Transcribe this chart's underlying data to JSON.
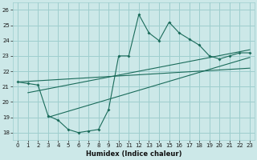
{
  "xlabel": "Humidex (Indice chaleur)",
  "bg_color": "#cce8e8",
  "line_color": "#1a6b5a",
  "xlim": [
    -0.5,
    23.5
  ],
  "ylim": [
    17.5,
    26.5
  ],
  "xticks": [
    0,
    1,
    2,
    3,
    4,
    5,
    6,
    7,
    8,
    9,
    10,
    11,
    12,
    13,
    14,
    15,
    16,
    17,
    18,
    19,
    20,
    21,
    22,
    23
  ],
  "yticks": [
    18,
    19,
    20,
    21,
    22,
    23,
    24,
    25,
    26
  ],
  "grid_color": "#9ecece",
  "data_line": [
    [
      0,
      21.3
    ],
    [
      1,
      21.2
    ],
    [
      2,
      21.1
    ],
    [
      3,
      19.1
    ],
    [
      4,
      18.8
    ],
    [
      5,
      18.2
    ],
    [
      6,
      18.0
    ],
    [
      7,
      18.1
    ],
    [
      8,
      18.2
    ],
    [
      9,
      19.5
    ],
    [
      10,
      23.0
    ],
    [
      11,
      23.0
    ],
    [
      12,
      25.7
    ],
    [
      13,
      24.5
    ],
    [
      14,
      24.0
    ],
    [
      15,
      25.2
    ],
    [
      16,
      24.5
    ],
    [
      17,
      24.1
    ],
    [
      18,
      23.7
    ],
    [
      19,
      23.0
    ],
    [
      20,
      22.8
    ],
    [
      21,
      23.0
    ],
    [
      22,
      23.2
    ],
    [
      23,
      23.2
    ]
  ],
  "trend_lines": [
    [
      [
        0,
        21.3
      ],
      [
        23,
        22.2
      ]
    ],
    [
      [
        1,
        20.6
      ],
      [
        23,
        23.4
      ]
    ],
    [
      [
        3,
        19.0
      ],
      [
        23,
        22.9
      ]
    ]
  ]
}
